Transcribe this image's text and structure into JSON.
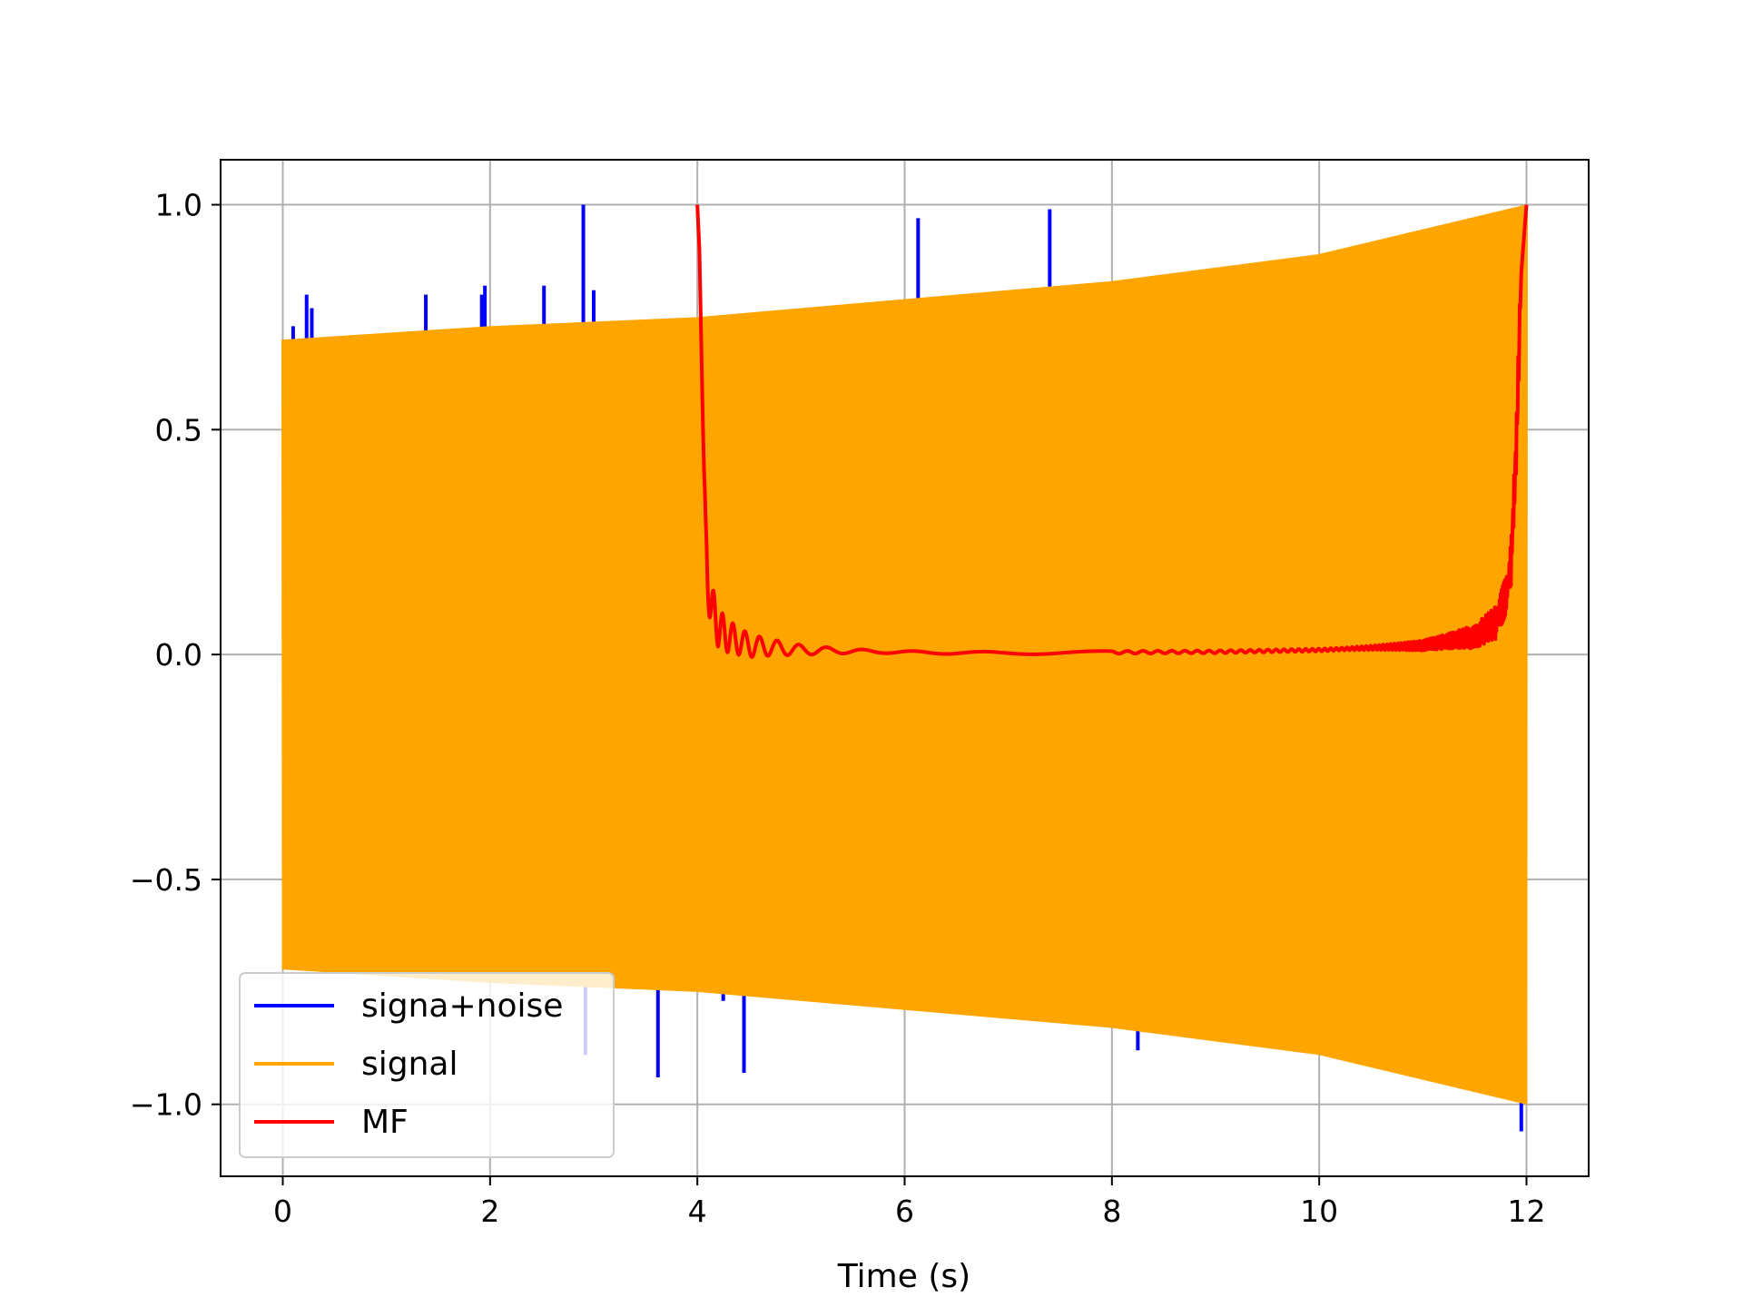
{
  "chart_data": {
    "type": "line",
    "title": "",
    "xlabel": "Time (s)",
    "ylabel": "",
    "xlim": [
      -0.6,
      12.6
    ],
    "ylim": [
      -1.16,
      1.1
    ],
    "xticks": [
      0,
      2,
      4,
      6,
      8,
      10,
      12
    ],
    "xtick_labels": [
      "0",
      "2",
      "4",
      "6",
      "8",
      "10",
      "12"
    ],
    "yticks": [
      -1.0,
      -0.5,
      0.0,
      0.5,
      1.0
    ],
    "ytick_labels": [
      "−1.0",
      "−0.5",
      "0.0",
      "0.5",
      "1.0"
    ],
    "grid": true,
    "legend_position": "lower-left",
    "series": [
      {
        "name": "signa+noise",
        "color": "#0000ff",
        "kind": "noisy-chirp",
        "x_range": [
          0,
          12
        ],
        "spikes_x": [
          0.1,
          0.23,
          0.28,
          1.38,
          1.92,
          1.95,
          2.52,
          2.9,
          2.92,
          3.0,
          3.62,
          4.25,
          4.45,
          6.13,
          7.4,
          8.25,
          11.95
        ],
        "spikes_y": [
          0.73,
          0.8,
          0.77,
          0.8,
          0.8,
          0.82,
          0.82,
          1.0,
          -0.89,
          0.81,
          -0.94,
          -0.77,
          -0.93,
          0.97,
          0.99,
          -0.88,
          -1.06
        ]
      },
      {
        "name": "signal",
        "color": "#ffa500",
        "kind": "chirp-envelope",
        "x_range": [
          0,
          12
        ],
        "envelope_x": [
          0,
          2,
          4,
          6,
          8,
          10,
          12
        ],
        "envelope_y": [
          0.7,
          0.73,
          0.75,
          0.79,
          0.83,
          0.89,
          1.0
        ]
      },
      {
        "name": "MF",
        "color": "#ff0000",
        "kind": "matched-filter",
        "x": [
          4.0,
          4.02,
          4.05,
          4.08,
          4.1,
          4.15,
          4.2,
          4.3,
          4.5,
          5.0,
          6.0,
          7.0,
          8.0,
          9.0,
          10.0,
          11.0,
          11.5,
          11.7,
          11.8,
          11.85,
          11.9,
          11.95,
          12.0
        ],
        "y": [
          1.0,
          0.9,
          0.55,
          0.25,
          0.15,
          0.1,
          0.06,
          0.04,
          0.02,
          0.01,
          0.005,
          0.003,
          0.005,
          0.006,
          0.01,
          0.02,
          0.04,
          0.07,
          0.13,
          0.2,
          0.45,
          0.85,
          1.0
        ]
      }
    ]
  }
}
